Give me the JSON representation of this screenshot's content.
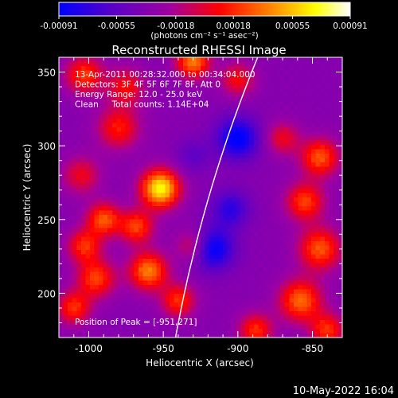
{
  "colorbar": {
    "tick_labels": [
      "-0.00091",
      "-0.00055",
      "-0.00018",
      "0.00018",
      "0.00055",
      "0.00091"
    ],
    "tick_values": [
      -0.00091,
      -0.00055,
      -0.00018,
      0.00018,
      0.00055,
      0.00091
    ],
    "range": [
      -0.00091,
      0.00091
    ],
    "unit_label": "(photons cm⁻² s⁻¹ asec⁻²)",
    "colors": [
      "#0000ff",
      "#5a00c8",
      "#a000a0",
      "#ff0000",
      "#ff8000",
      "#ffff00",
      "#ffffff"
    ]
  },
  "chart_data": {
    "type": "heatmap",
    "title": "Reconstructed RHESSI Image",
    "xlabel": "Heliocentric X (arcsec)",
    "ylabel": "Heliocentric Y (arcsec)",
    "xlim": [
      -1020,
      -830
    ],
    "ylim": [
      170,
      360
    ],
    "x_ticks": [
      -1000,
      -950,
      -900,
      -850
    ],
    "x_tick_labels": [
      "-1000",
      "-950",
      "-900",
      "-850"
    ],
    "y_ticks": [
      200,
      250,
      300,
      350
    ],
    "y_tick_labels": [
      "200",
      "250",
      "300",
      "350"
    ],
    "info_lines": [
      "13-Apr-2011 00:28:32.000 to 00:34:04.000",
      "Detectors: 3F 4F 5F 6F 7F 8F, Att 0",
      "Energy Range: 12.0 - 25.0 keV",
      "Clean     Total counts: 1.14E+04"
    ],
    "peak_label": "Position of Peak = [-951,271]",
    "peak": [
      -951,
      271
    ],
    "sources": [
      {
        "x": -952,
        "y": 271,
        "amp": 0.00091,
        "w": 9
      },
      {
        "x": -930,
        "y": 357,
        "amp": 0.0006,
        "w": 8
      },
      {
        "x": -1003,
        "y": 348,
        "amp": 0.00042,
        "w": 9
      },
      {
        "x": -975,
        "y": 340,
        "amp": 0.0003,
        "w": 9
      },
      {
        "x": -980,
        "y": 312,
        "amp": 0.00035,
        "w": 10
      },
      {
        "x": -1005,
        "y": 280,
        "amp": 0.00025,
        "w": 9
      },
      {
        "x": -990,
        "y": 250,
        "amp": 0.0005,
        "w": 8
      },
      {
        "x": -968,
        "y": 245,
        "amp": 0.00045,
        "w": 8
      },
      {
        "x": -1003,
        "y": 232,
        "amp": 0.0004,
        "w": 8
      },
      {
        "x": -960,
        "y": 215,
        "amp": 0.0006,
        "w": 9
      },
      {
        "x": -995,
        "y": 210,
        "amp": 0.00045,
        "w": 9
      },
      {
        "x": -1010,
        "y": 190,
        "amp": 0.0004,
        "w": 8
      },
      {
        "x": -940,
        "y": 195,
        "amp": 0.0004,
        "w": 8
      },
      {
        "x": -930,
        "y": 232,
        "amp": 0.00025,
        "w": 8
      },
      {
        "x": -845,
        "y": 292,
        "amp": 0.0005,
        "w": 9
      },
      {
        "x": -855,
        "y": 262,
        "amp": 0.00045,
        "w": 9
      },
      {
        "x": -845,
        "y": 230,
        "amp": 0.0005,
        "w": 10
      },
      {
        "x": -858,
        "y": 195,
        "amp": 0.00055,
        "w": 10
      },
      {
        "x": -840,
        "y": 175,
        "amp": 0.0004,
        "w": 8
      },
      {
        "x": -888,
        "y": 175,
        "amp": 0.0004,
        "w": 8
      },
      {
        "x": -870,
        "y": 305,
        "amp": 0.00025,
        "w": 8
      },
      {
        "x": -900,
        "y": 345,
        "amp": 0.0003,
        "w": 8
      },
      {
        "x": -900,
        "y": 305,
        "amp": -0.0006,
        "w": 10
      },
      {
        "x": -917,
        "y": 230,
        "amp": -0.0006,
        "w": 10
      },
      {
        "x": -905,
        "y": 257,
        "amp": -0.0004,
        "w": 9
      },
      {
        "x": -930,
        "y": 293,
        "amp": -0.0002,
        "w": 8
      }
    ],
    "limb": {
      "center": [
        0,
        0
      ],
      "radius": 957,
      "drawn_from_y": 170,
      "drawn_to_y": 360
    }
  },
  "footer": {
    "timestamp": "10-May-2022 16:04"
  }
}
